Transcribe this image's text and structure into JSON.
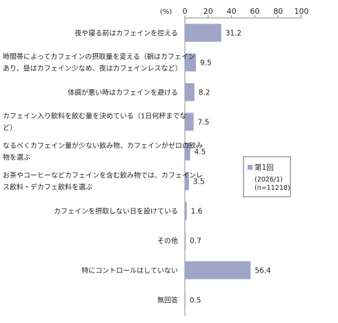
{
  "chart_data": {
    "type": "bar",
    "orientation": "horizontal",
    "unit_label": "(%)",
    "xlim": [
      0,
      100
    ],
    "xticks": [
      "0",
      "20",
      "40",
      "60",
      "80",
      "100"
    ],
    "grid": false,
    "legend_position": "right",
    "categories": [
      [
        "夜や寝る前はカフェインを控える"
      ],
      [
        "時間帯によってカフェインの摂取量を変える（朝はカフェイン",
        "あり、昼はカフェイン少なめ、夜はカフェインレスなど）"
      ],
      [
        "体調が悪い時はカフェインを避ける"
      ],
      [
        "カフェイン入り飲料を飲む量を決めている（1日何杯までな",
        "ど）"
      ],
      [
        "なるべくカフェイン量が少ない飲み物、カフェインがゼロの飲み",
        "物を選ぶ"
      ],
      [
        "お茶やコーヒーなどカフェインを含む飲み物では、カフェインレ",
        "ス飲料・デカフェ飲料を選ぶ"
      ],
      [
        "カフェインを摂取しない日を設けている"
      ],
      [
        "その他"
      ],
      [
        "特にコントロールはしていない"
      ],
      [
        "無回答"
      ]
    ],
    "series": [
      {
        "name": "第1回",
        "values": [
          31.2,
          9.5,
          8.2,
          7.5,
          4.5,
          3.5,
          1.6,
          0.7,
          56.4,
          0.5
        ],
        "labels": [
          "31.2",
          "9.5",
          "8.2",
          "7.5",
          "4.5",
          "3.5",
          "1.6",
          "0.7",
          "56.4",
          "0.5"
        ]
      }
    ],
    "legend": {
      "title": "第1回",
      "lines": [
        "(2026/1)",
        "(n=11218)"
      ]
    }
  },
  "colors": {
    "bar": "#9fa5c6",
    "axis": "#888888",
    "legend_border": "#666666"
  }
}
